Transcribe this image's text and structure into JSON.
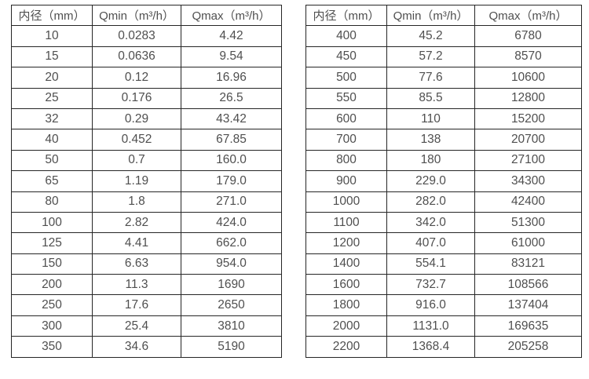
{
  "colors": {
    "border": "#262626",
    "text": "#4f4f4f",
    "background": "#ffffff"
  },
  "tables": [
    {
      "id": "small-diameter",
      "headers": [
        "内径（mm）",
        "Qmin（m³/h）",
        "Qmax（m³/h）"
      ],
      "rows": [
        [
          "10",
          "0.0283",
          "4.42"
        ],
        [
          "15",
          "0.0636",
          "9.54"
        ],
        [
          "20",
          "0.12",
          "16.96"
        ],
        [
          "25",
          "0.176",
          "26.5"
        ],
        [
          "32",
          "0.29",
          "43.42"
        ],
        [
          "40",
          "0.452",
          "67.85"
        ],
        [
          "50",
          "0.7",
          "160.0"
        ],
        [
          "65",
          "1.19",
          "179.0"
        ],
        [
          "80",
          "1.8",
          "271.0"
        ],
        [
          "100",
          "2.82",
          "424.0"
        ],
        [
          "125",
          "4.41",
          "662.0"
        ],
        [
          "150",
          "6.63",
          "954.0"
        ],
        [
          "200",
          "11.3",
          "1690"
        ],
        [
          "250",
          "17.6",
          "2650"
        ],
        [
          "300",
          "25.4",
          "3810"
        ],
        [
          "350",
          "34.6",
          "5190"
        ]
      ]
    },
    {
      "id": "large-diameter",
      "headers": [
        "内径（mm）",
        "Qmin（m³/h）",
        "Qmax（m³/h）"
      ],
      "rows": [
        [
          "400",
          "45.2",
          "6780"
        ],
        [
          "450",
          "57.2",
          "8570"
        ],
        [
          "500",
          "77.6",
          "10600"
        ],
        [
          "550",
          "85.5",
          "12800"
        ],
        [
          "600",
          "110",
          "15200"
        ],
        [
          "700",
          "138",
          "20700"
        ],
        [
          "800",
          "180",
          "27100"
        ],
        [
          "900",
          "229.0",
          "34300"
        ],
        [
          "1000",
          "282.0",
          "42400"
        ],
        [
          "1100",
          "342.0",
          "51300"
        ],
        [
          "1200",
          "407.0",
          "61000"
        ],
        [
          "1400",
          "554.1",
          "83121"
        ],
        [
          "1600",
          "732.7",
          "108566"
        ],
        [
          "1800",
          "916.0",
          "137404"
        ],
        [
          "2000",
          "1131.0",
          "169635"
        ],
        [
          "2200",
          "1368.4",
          "205258"
        ]
      ]
    }
  ]
}
